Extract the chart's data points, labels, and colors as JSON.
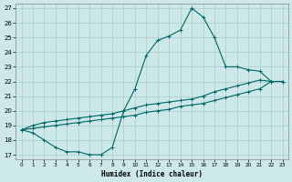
{
  "xlabel": "Humidex (Indice chaleur)",
  "background_color": "#cce8e8",
  "grid_color": "#aacccc",
  "line_color": "#006666",
  "xlim": [
    -0.5,
    23.5
  ],
  "ylim": [
    16.7,
    27.3
  ],
  "xticks": [
    0,
    1,
    2,
    3,
    4,
    5,
    6,
    7,
    8,
    9,
    10,
    11,
    12,
    13,
    14,
    15,
    16,
    17,
    18,
    19,
    20,
    21,
    22,
    23
  ],
  "yticks": [
    17,
    18,
    19,
    20,
    21,
    22,
    23,
    24,
    25,
    26,
    27
  ],
  "curve_x": [
    0,
    1,
    2,
    3,
    4,
    5,
    6,
    7,
    8,
    9,
    10,
    11,
    12,
    13,
    14,
    15,
    16,
    17,
    18,
    19,
    20,
    21,
    22,
    23
  ],
  "curve_y": [
    18.7,
    18.5,
    18.0,
    17.5,
    17.2,
    17.2,
    17.0,
    17.0,
    17.5,
    20.0,
    21.5,
    23.8,
    24.8,
    25.1,
    25.5,
    27.0,
    26.4,
    25.0,
    23.0,
    23.0,
    22.8,
    22.7,
    22.0,
    22.0
  ],
  "diag_upper_x": [
    0,
    1,
    2,
    3,
    4,
    5,
    6,
    7,
    8,
    9,
    10,
    11,
    12,
    13,
    14,
    15,
    16,
    17,
    18,
    19,
    20,
    21,
    22,
    23
  ],
  "diag_upper_y": [
    18.7,
    19.0,
    19.2,
    19.3,
    19.4,
    19.5,
    19.6,
    19.7,
    19.8,
    20.0,
    20.2,
    20.4,
    20.5,
    20.6,
    20.7,
    20.8,
    21.0,
    21.3,
    21.5,
    21.7,
    21.9,
    22.1,
    22.0,
    22.0
  ],
  "diag_lower_x": [
    0,
    1,
    2,
    3,
    4,
    5,
    6,
    7,
    8,
    9,
    10,
    11,
    12,
    13,
    14,
    15,
    16,
    17,
    18,
    19,
    20,
    21,
    22,
    23
  ],
  "diag_lower_y": [
    18.7,
    18.8,
    18.9,
    19.0,
    19.1,
    19.2,
    19.3,
    19.4,
    19.5,
    19.6,
    19.7,
    19.9,
    20.0,
    20.1,
    20.3,
    20.4,
    20.5,
    20.7,
    20.9,
    21.1,
    21.3,
    21.5,
    22.0,
    22.0
  ]
}
